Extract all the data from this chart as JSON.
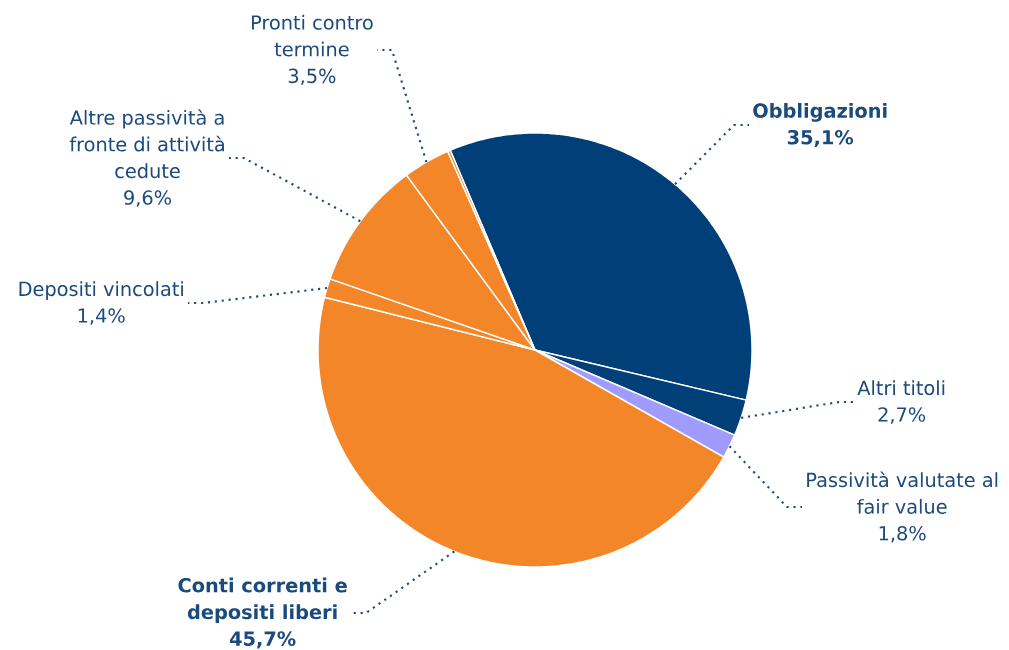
{
  "chart_data": {
    "type": "pie",
    "categories": [
      "Obbligazioni",
      "Altri titoli",
      "Passività valutate al fair value",
      "Conti correnti e depositi liberi",
      "Depositi vincolati",
      "Altre passività a fronte di attività cedute",
      "Pronti contro termine",
      null
    ],
    "values": [
      35.1,
      2.7,
      1.8,
      45.7,
      1.4,
      9.6,
      3.5,
      0.2
    ],
    "colors": [
      "#003f78",
      "#003f78",
      "#a09cff",
      "#f4862a",
      "#f4862a",
      "#f4862a",
      "#f4862a",
      "#f4862a"
    ],
    "value_labels": [
      "35,1%",
      "2,7%",
      "1,8%",
      "45,7%",
      "1,4%",
      "9,6%",
      "3,5%",
      null
    ]
  }
}
